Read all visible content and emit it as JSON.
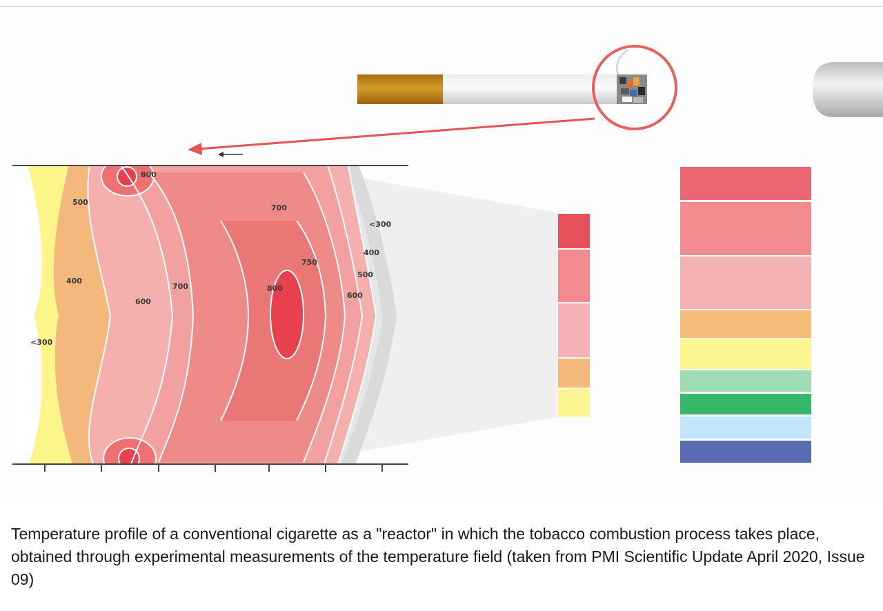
{
  "caption": "Temperature profile of a conventional cigarette as a \"reactor\" in which the tobacco combustion process takes place, obtained through experimental measurements of the temperature field (taken from PMI Scientific Update April 2020, Issue 09)",
  "contour_labels": {
    "top_hotspot": "800",
    "left_500": "500",
    "upper_700": "700",
    "right_lt300": "<300",
    "right_400": "400",
    "mid_750": "750",
    "right_500": "500",
    "left_400": "400",
    "mid_700": "700",
    "core_800": "800",
    "right_600": "600",
    "left_600": "600",
    "left_lt300": "<300"
  },
  "colors": {
    "zone_800": "#e8404e",
    "zone_750": "#ee7474",
    "zone_700": "#f3a0a0",
    "zone_600": "#f5b0ae",
    "zone_500": "#f4b77c",
    "zone_400": "#fbf58a",
    "zone_300": "#dadada",
    "filter": "#c58a1c",
    "paper": "#dcdcdc",
    "highlight_ring": "#e8605e",
    "pointer_arrow": "#e45454"
  },
  "small_legend_colors": [
    "#e8505c",
    "#f28b8f",
    "#f5b3b7",
    "#f5b97c",
    "#fcf690"
  ],
  "large_legend_colors": [
    "#ea6670",
    "#f28c90",
    "#f5b2b5",
    "#f5bc7a",
    "#fcf68e",
    "#9fdcb6",
    "#36b86c",
    "#c0e4f8",
    "#5a6db2"
  ]
}
